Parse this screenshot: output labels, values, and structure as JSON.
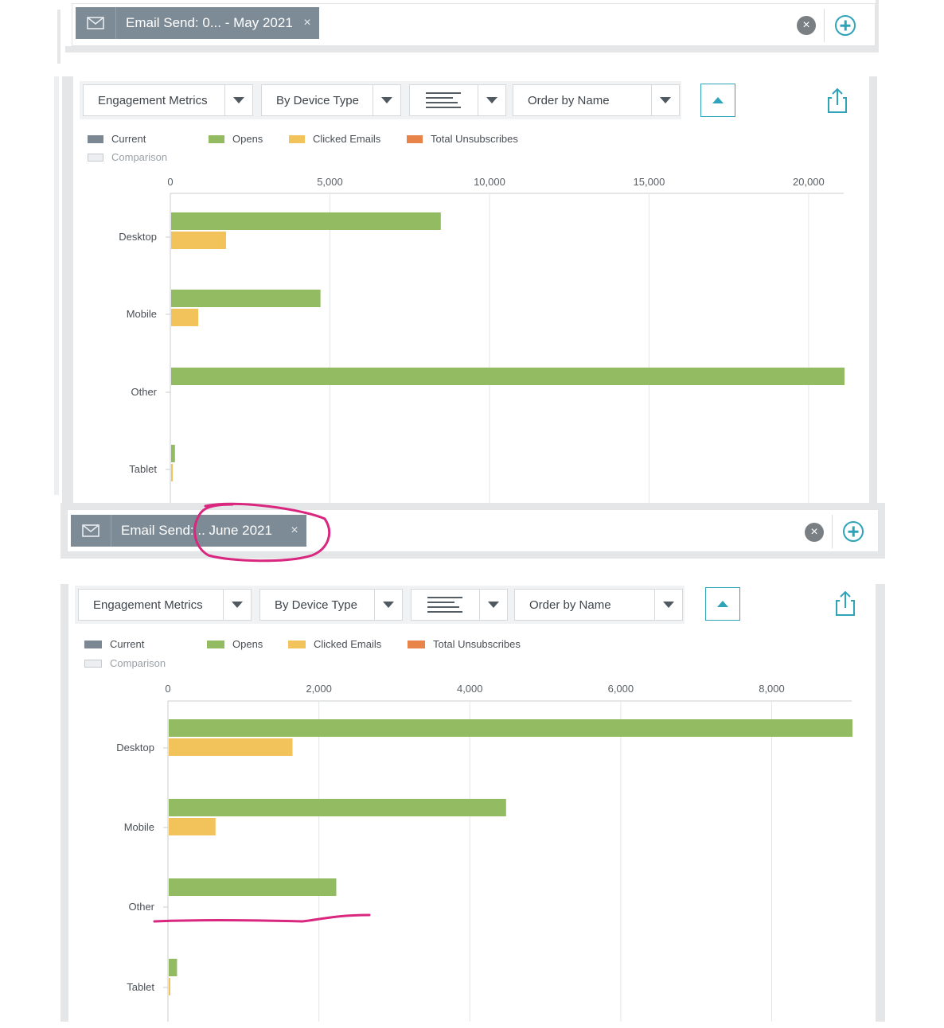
{
  "colors": {
    "current": "#7b8792",
    "comparison": "#e6e8ea",
    "opens": "#93bb62",
    "clicked": "#f2c25b",
    "unsubscribes": "#e8834a",
    "accent": "#2fa3b8",
    "annotation": "#d9267f"
  },
  "icons": {
    "chip": "envelope-icon",
    "chip_close": "close-icon",
    "clear": "clear-icon",
    "add": "plus-circle-icon",
    "chart_type": "horizontal-bars-icon",
    "collapse": "chevron-up-icon",
    "share": "share-icon"
  },
  "sections": [
    {
      "filter": {
        "chip_label": "Email Send: 0... - May 2021",
        "close_glyph": "×",
        "clear_glyph": "×"
      },
      "controls": {
        "metrics": "Engagement Metrics",
        "grouping": "By Device Type",
        "order": "Order by Name"
      },
      "legend": {
        "current": "Current",
        "comparison": "Comparison",
        "opens": "Opens",
        "clicked": "Clicked Emails",
        "unsubscribes": "Total Unsubscribes"
      }
    },
    {
      "filter": {
        "chip_label": "Email Send: .. June 2021",
        "close_glyph": "×",
        "clear_glyph": "×"
      },
      "controls": {
        "metrics": "Engagement Metrics",
        "grouping": "By Device Type",
        "order": "Order by Name"
      },
      "legend": {
        "current": "Current",
        "comparison": "Comparison",
        "opens": "Opens",
        "clicked": "Clicked Emails",
        "unsubscribes": "Total Unsubscribes"
      }
    }
  ],
  "chart_data": [
    {
      "type": "bar",
      "orientation": "horizontal",
      "categories": [
        "Desktop",
        "Mobile",
        "Other",
        "Tablet"
      ],
      "series": [
        {
          "name": "Opens",
          "values": [
            8450,
            4680,
            21100,
            120
          ]
        },
        {
          "name": "Clicked Emails",
          "values": [
            1720,
            850,
            0,
            20
          ]
        },
        {
          "name": "Total Unsubscribes",
          "values": [
            0,
            0,
            0,
            0
          ]
        }
      ],
      "xlim": [
        0,
        21100
      ],
      "xticks": [
        0,
        5000,
        10000,
        15000,
        20000
      ],
      "xtick_labels": [
        "0",
        "5,000",
        "10,000",
        "15,000",
        "20,000"
      ],
      "grid": true,
      "legend_position": "top-left"
    },
    {
      "type": "bar",
      "orientation": "horizontal",
      "categories": [
        "Desktop",
        "Mobile",
        "Other",
        "Tablet"
      ],
      "series": [
        {
          "name": "Opens",
          "values": [
            9060,
            4470,
            2220,
            110
          ]
        },
        {
          "name": "Clicked Emails",
          "values": [
            1640,
            620,
            0,
            20
          ]
        },
        {
          "name": "Total Unsubscribes",
          "values": [
            0,
            0,
            0,
            0
          ]
        }
      ],
      "xlim": [
        0,
        9060
      ],
      "xticks": [
        0,
        2000,
        4000,
        6000,
        8000
      ],
      "xtick_labels": [
        "0",
        "2,000",
        "4,000",
        "6,000",
        "8,000"
      ],
      "grid": true,
      "legend_position": "top-left"
    }
  ]
}
